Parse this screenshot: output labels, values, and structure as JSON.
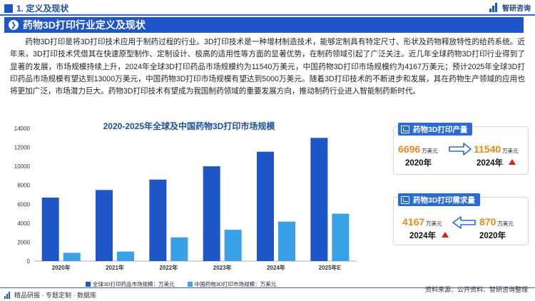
{
  "header": {
    "section_title": "1. 定义及现状",
    "logo_text": "智研咨询"
  },
  "banner": {
    "title": "药物3D打印行业定义及现状"
  },
  "paragraph": "药物3D打印是将3D打印技术应用于制药过程的行业。3D打印技术是一种增材制造技术，能够定制具有特定尺寸、形状及药物释放特性的给药系统。近年来，3D打印技术凭借其在快速原型制作、定制设计、极高的适用性等方面的显著优势，在制药领域引起了广泛关注。近几年全球药物3D打印行业得到了显著的发展，市场规模持续上升，2024年全球3D打印药品市场规模约为11540万美元，中国药物3D打印市场规模约为4167万美元；预计2025年全球3D打印药品市场规模有望达到13000万美元，中国药物3D打印市场规模有望达到5000万美元。随着3D打印技术的不断进步和发展，其在药物生产领域的应用也将更加广泛，市场潜力巨大。药物3D打印技术有望成为我国制药领域的重要发展方向，推动制药行业进入智能制药新时代。",
  "chart_data": {
    "type": "bar",
    "title": "2020-2025年全球及中国药物3D打印市场规模",
    "categories": [
      "2020年",
      "2021年",
      "2022年",
      "2023年",
      "2024年",
      "2025年E"
    ],
    "ylim": [
      0,
      14000
    ],
    "yticks": [
      0,
      2000,
      4000,
      6000,
      8000,
      10000,
      12000,
      14000
    ],
    "series": [
      {
        "name": "全球3D打印药品市场规模：万美元",
        "color": "#1f56c7",
        "values": [
          6696,
          7500,
          8600,
          10000,
          11540,
          13000
        ]
      },
      {
        "name": "中国药物3D打印市场规模：万美元",
        "color": "#3aa0e8",
        "values": [
          870,
          1000,
          2500,
          3300,
          4167,
          5000
        ]
      }
    ]
  },
  "card_output": {
    "title": "药物3D打印产量",
    "from_value": "6696",
    "from_unit": "万美元",
    "from_year": "2020年",
    "to_value": "11540",
    "to_unit": "万美元",
    "to_year": "2024年"
  },
  "card_demand": {
    "title": "药物3D打印需求量",
    "left_value": "4167",
    "left_unit": "万美元",
    "left_year": "2024年",
    "right_value": "870",
    "right_unit": "万美元",
    "right_year": "2020年"
  },
  "footer": {
    "left_text": "精品研报 · 专题定制 · 数据库",
    "source": "资料来源：公开资料、智研咨询整理"
  }
}
